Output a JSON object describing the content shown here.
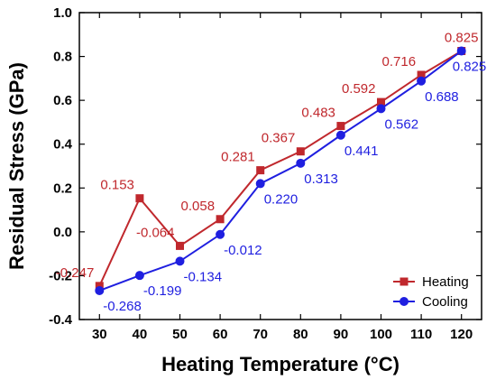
{
  "chart_data": {
    "type": "line",
    "title": "",
    "xlabel": "Heating Temperature (°C)",
    "ylabel": "Residual Stress (GPa)",
    "x": [
      30,
      40,
      50,
      60,
      70,
      80,
      90,
      100,
      110,
      120
    ],
    "xlim": [
      25,
      125
    ],
    "ylim": [
      -0.4,
      1.0
    ],
    "x_ticks": [
      "30",
      "40",
      "50",
      "60",
      "70",
      "80",
      "90",
      "100",
      "110",
      "120"
    ],
    "y_ticks": [
      "-0.4",
      "-0.2",
      "0.0",
      "0.2",
      "0.4",
      "0.6",
      "0.8",
      "1.0"
    ],
    "grid": false,
    "legend_position": "bottom-right",
    "series": [
      {
        "name": "Heating",
        "color": "#c0282d",
        "marker": "square",
        "values": [
          -0.247,
          0.153,
          -0.064,
          0.058,
          0.281,
          0.367,
          0.483,
          0.592,
          0.716,
          0.825
        ],
        "value_labels": [
          "-0.247",
          "0.153",
          "-0.064",
          "0.058",
          "0.281",
          "0.367",
          "0.483",
          "0.592",
          "0.716",
          "0.825"
        ]
      },
      {
        "name": "Cooling",
        "color": "#1f1fe0",
        "marker": "circle",
        "values": [
          -0.268,
          -0.199,
          -0.134,
          -0.012,
          0.22,
          0.313,
          0.441,
          0.562,
          0.688,
          0.825
        ],
        "value_labels": [
          "-0.268",
          "-0.199",
          "-0.134",
          "-0.012",
          "0.220",
          "0.313",
          "0.441",
          "0.562",
          "0.688",
          "0.825"
        ]
      }
    ]
  }
}
